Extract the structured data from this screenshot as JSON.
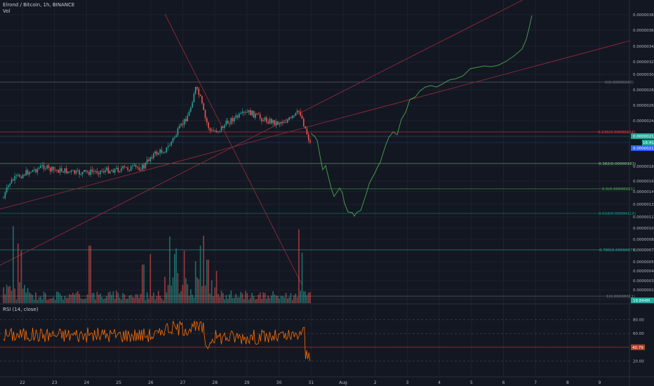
{
  "header": {
    "symbol_line": "Elrond / Bitcoin, 1h, BINANCE",
    "vol_label": "Vol"
  },
  "rsi": {
    "label": "RSI (14, close)",
    "scale": [
      "80.00",
      "60.00",
      "40.00",
      "20.00"
    ],
    "current": "40.79",
    "upper": 80,
    "lower": 20,
    "middle": 40
  },
  "price_axis": {
    "ticks": [
      "0.00000380",
      "0.00000360",
      "0.00000340",
      "0.00000320",
      "0.00000300",
      "0.00000280",
      "0.00000260",
      "0.00000240",
      "0.00000220",
      "0.00000180",
      "0.00000160",
      "0.00000145",
      "0.00000130",
      "0.00000115",
      "0.00000100",
      "0.00000085",
      "0.00000070",
      "0.00000055",
      "0.00000043",
      "0.00000031",
      "0.00000019",
      "0.00000007"
    ],
    "current_price": "0.00000219",
    "countdown": "16:41",
    "secondary_price": "0.00000210",
    "volume_badge": "19.844M"
  },
  "time_axis": {
    "labels": [
      "22",
      "23",
      "24",
      "25",
      "26",
      "27",
      "28",
      "29",
      "30",
      "31",
      "Aug",
      "2",
      "3",
      "4",
      "5",
      "6",
      "7",
      "8",
      "9"
    ]
  },
  "fib_levels": [
    {
      "label": "0(0.00000290)",
      "color": "#787b86"
    },
    {
      "label": "0.236(0.00000224)",
      "color": "#f23645"
    },
    {
      "label": "0.382(0.00000183)",
      "color": "#81c784"
    },
    {
      "label": "0.5(0.00000151)",
      "color": "#4caf50"
    },
    {
      "label": "0.618(0.00000118)",
      "color": "#089981"
    },
    {
      "label": "0.786(0.00000071)",
      "color": "#26a69a"
    },
    {
      "label": "1(0.00000011)",
      "color": "#787b86"
    }
  ],
  "colors": {
    "background": "#131722",
    "up": "#26a69a",
    "down": "#ef5350",
    "projection": "#4caf50",
    "rsi": "#ff6d00",
    "trendline": "#8a2a3a"
  }
}
